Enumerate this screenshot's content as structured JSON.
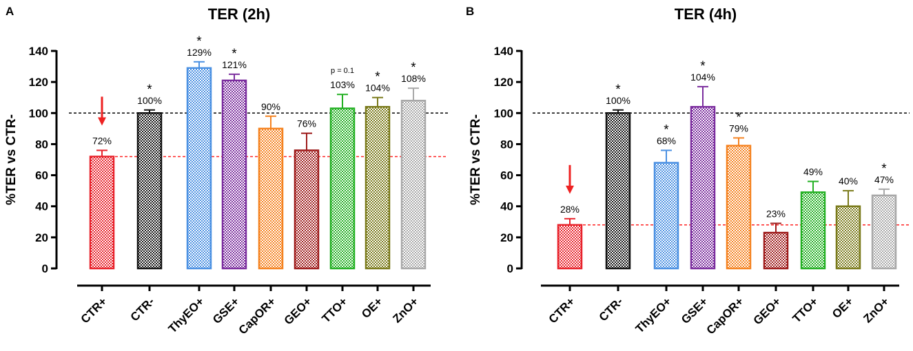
{
  "chart_data": [
    {
      "panel": "A",
      "type": "bar",
      "title": "TER (2h)",
      "ylabel": "%TER vs CTR-",
      "xlabel": "",
      "ylim": [
        0,
        140
      ],
      "yticks": [
        0,
        20,
        40,
        60,
        80,
        100,
        120,
        140
      ],
      "reference_lines": [
        {
          "value": 100,
          "color": "#000000",
          "style": "dashed"
        },
        {
          "value": 72,
          "color": "#ff2020",
          "style": "dashed"
        }
      ],
      "categories": [
        "CTR+",
        "CTR-",
        "ThyEO+",
        "GSE+",
        "CapOR+",
        "GEO+",
        "TTO+",
        "OE+",
        "ZnO+"
      ],
      "values": [
        72,
        100,
        129,
        121,
        90,
        76,
        103,
        104,
        108
      ],
      "errors": [
        4,
        2,
        4,
        4,
        8,
        11,
        9,
        6,
        8
      ],
      "value_labels": [
        "72%",
        "100%",
        "129%",
        "121%",
        "90%",
        "76%",
        "103%",
        "104%",
        "108%"
      ],
      "significance": [
        "",
        "*",
        "*",
        "*",
        "",
        "",
        "p = 0.1",
        "*",
        "*"
      ],
      "colors": [
        "#e8212a",
        "#111111",
        "#4a90e2",
        "#7b2d9e",
        "#f58220",
        "#9e1b1b",
        "#22b022",
        "#7a7a1a",
        "#a8a8a8"
      ],
      "arrow_on": "CTR+",
      "arrow_color": "#ee2222"
    },
    {
      "panel": "B",
      "type": "bar",
      "title": "TER (4h)",
      "ylabel": "%TER vs CTR-",
      "xlabel": "",
      "ylim": [
        0,
        140
      ],
      "yticks": [
        0,
        20,
        40,
        60,
        80,
        100,
        120,
        140
      ],
      "reference_lines": [
        {
          "value": 100,
          "color": "#000000",
          "style": "dashed"
        },
        {
          "value": 28,
          "color": "#ff2020",
          "style": "dashed"
        }
      ],
      "categories": [
        "CTR+",
        "CTR-",
        "ThyEO+",
        "GSE+",
        "CapOR+",
        "GEO+",
        "TTO+",
        "OE+",
        "ZnO+"
      ],
      "values": [
        28,
        100,
        68,
        104,
        79,
        23,
        49,
        40,
        47
      ],
      "errors": [
        4,
        2,
        8,
        13,
        5,
        6,
        7,
        10,
        4
      ],
      "value_labels": [
        "28%",
        "100%",
        "68%",
        "104%",
        "79%",
        "23%",
        "49%",
        "40%",
        "47%"
      ],
      "significance": [
        "",
        "*",
        "*",
        "*",
        "*",
        "",
        "",
        "",
        "*"
      ],
      "colors": [
        "#e8212a",
        "#111111",
        "#4a90e2",
        "#7b2d9e",
        "#f58220",
        "#9e1b1b",
        "#22b022",
        "#7a7a1a",
        "#a8a8a8"
      ],
      "arrow_on": "CTR+",
      "arrow_color": "#ee2222"
    }
  ]
}
